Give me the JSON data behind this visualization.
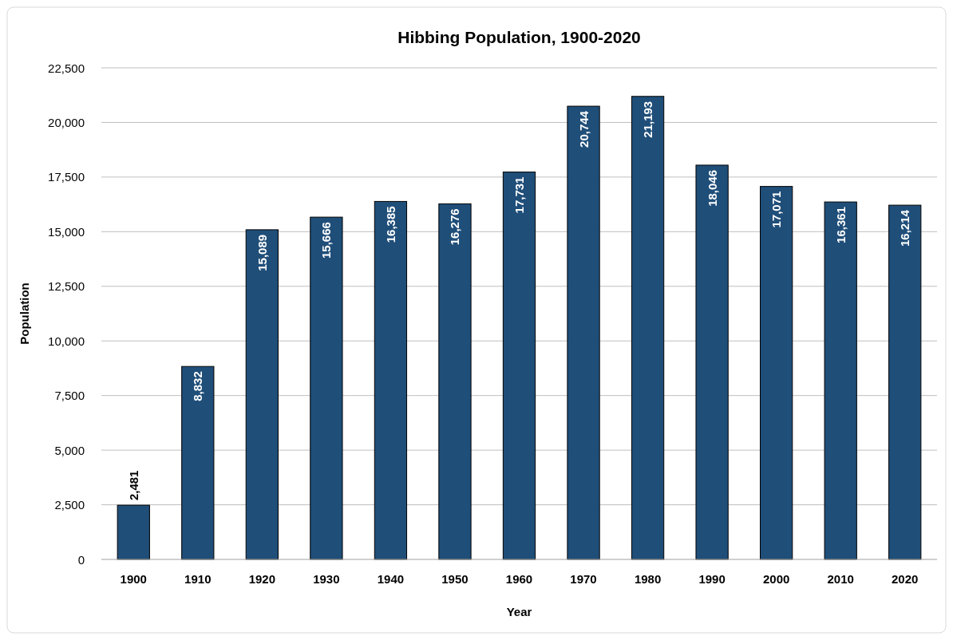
{
  "chart_data": {
    "type": "bar",
    "title": "Hibbing Population, 1900-2020",
    "xlabel": "Year",
    "ylabel": "Population",
    "categories": [
      "1900",
      "1910",
      "1920",
      "1930",
      "1940",
      "1950",
      "1960",
      "1970",
      "1980",
      "1990",
      "2000",
      "2010",
      "2020"
    ],
    "values": [
      2481,
      8832,
      15089,
      15666,
      16385,
      16276,
      17731,
      20744,
      21193,
      18046,
      17071,
      16361,
      16214
    ],
    "color": "#1f4e79",
    "ylim": [
      0,
      22500
    ],
    "yticks": [
      {
        "value": 0,
        "label": "0"
      },
      {
        "value": 2500,
        "label": "2,500"
      },
      {
        "value": 5000,
        "label": "5,000"
      },
      {
        "value": 7500,
        "label": "7,500"
      },
      {
        "value": 10000,
        "label": "10,000"
      },
      {
        "value": 12500,
        "label": "12,500"
      },
      {
        "value": 15000,
        "label": "15,000"
      },
      {
        "value": 17500,
        "label": "17,500"
      },
      {
        "value": 20000,
        "label": "20,000"
      },
      {
        "value": 22500,
        "label": "22,500"
      }
    ],
    "value_labels": [
      "2,481",
      "8,832",
      "15,089",
      "15,666",
      "16,385",
      "16,276",
      "17,731",
      "20,744",
      "21,193",
      "18,046",
      "17,071",
      "16,361",
      "16,214"
    ],
    "grid": "y"
  }
}
